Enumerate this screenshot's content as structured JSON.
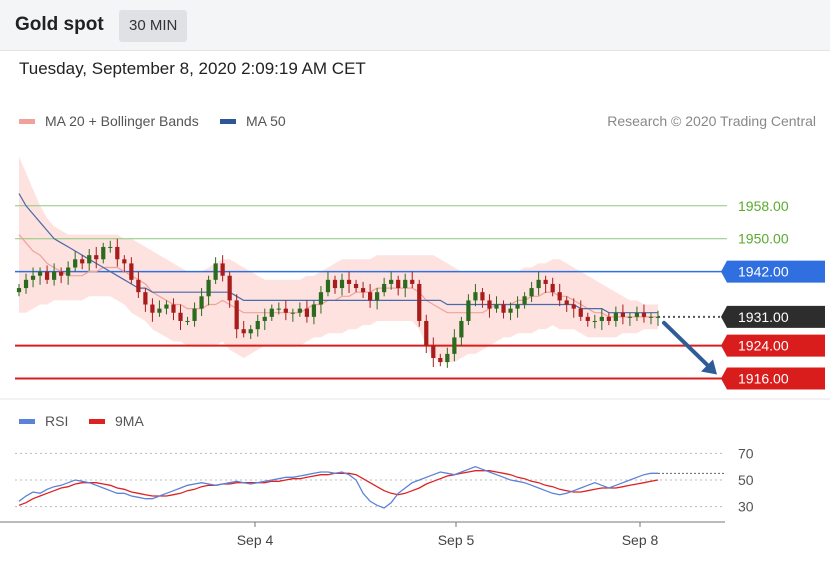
{
  "header": {
    "title": "Gold spot",
    "timeframe": "30 MIN",
    "datetime": "Tuesday, September 8, 2020 2:09:19 AM CET"
  },
  "legend": {
    "ma20_label": "MA 20 + Bollinger Bands",
    "ma50_label": "MA 50",
    "credit": "Research © 2020 Trading Central",
    "rsi_label": "RSI",
    "rsi_ma_label": "9MA"
  },
  "colors": {
    "resistance_green": "#8cc97a",
    "resistance_green_text": "#5aaa2e",
    "pivot_blue": "#2f6fe0",
    "support_red": "#d91c1c",
    "current_dark": "#2d2d2d",
    "candle_up": "#2c6b1e",
    "candle_down": "#a81c1c",
    "bollinger_fill": "#fde2e0",
    "ma20": "#f2a19a",
    "ma50": "#4a6aa8",
    "rsi": "#5b82d8",
    "rsi_ma": "#dd2222",
    "arrow": "#2d5c97"
  },
  "chart_data": [
    {
      "type": "candlestick",
      "title": "Gold spot",
      "x_ticks": [
        "Sep 4",
        "Sep 5",
        "Sep 8"
      ],
      "ylim": [
        1912,
        1974
      ],
      "levels": [
        {
          "value": 1958.0,
          "label": "1958.00",
          "kind": "resistance"
        },
        {
          "value": 1950.0,
          "label": "1950.00",
          "kind": "resistance"
        },
        {
          "value": 1942.0,
          "label": "1942.00",
          "kind": "pivot"
        },
        {
          "value": 1931.0,
          "label": "1931.00",
          "kind": "current"
        },
        {
          "value": 1924.0,
          "label": "1924.00",
          "kind": "support"
        },
        {
          "value": 1916.0,
          "label": "1916.00",
          "kind": "support"
        }
      ],
      "close": [
        1938,
        1940,
        1941,
        1942,
        1940,
        1942,
        1941,
        1943,
        1945,
        1944,
        1946,
        1945,
        1948,
        1948,
        1945,
        1944,
        1940,
        1937,
        1934,
        1932,
        1933,
        1934,
        1932,
        1930,
        1930,
        1933,
        1936,
        1940,
        1944,
        1941,
        1935,
        1928,
        1927,
        1928,
        1930,
        1931,
        1933,
        1933,
        1932,
        1932,
        1933,
        1931,
        1934,
        1937,
        1940,
        1938,
        1940,
        1939,
        1938,
        1937,
        1935,
        1937,
        1939,
        1940,
        1938,
        1940,
        1939,
        1930,
        1924,
        1921,
        1920,
        1922,
        1926,
        1930,
        1935,
        1937,
        1935,
        1933,
        1934,
        1932,
        1933,
        1934,
        1936,
        1938,
        1940,
        1939,
        1937,
        1935,
        1934,
        1933,
        1931,
        1930,
        1930,
        1931,
        1930,
        1932,
        1931,
        1931,
        1932,
        1931,
        1931,
        1931
      ],
      "ma20": [
        1951,
        1949,
        1947,
        1946,
        1944,
        1943,
        1942,
        1941,
        1941,
        1941,
        1942,
        1942,
        1943,
        1943,
        1943,
        1942,
        1941,
        1940,
        1939,
        1937,
        1936,
        1935,
        1934,
        1934,
        1933,
        1933,
        1933,
        1934,
        1934,
        1935,
        1934,
        1933,
        1932,
        1932,
        1932,
        1932,
        1932,
        1932,
        1932,
        1932,
        1932,
        1933,
        1934,
        1934,
        1935,
        1935,
        1936,
        1936,
        1937,
        1937,
        1937,
        1938,
        1938,
        1938,
        1938,
        1938,
        1938,
        1937,
        1935,
        1934,
        1933,
        1932,
        1932,
        1932,
        1932,
        1932,
        1932,
        1933,
        1934,
        1934,
        1934,
        1935,
        1935,
        1936,
        1936,
        1937,
        1937,
        1936,
        1936,
        1935,
        1934,
        1933,
        1932,
        1932,
        1931,
        1931,
        1931,
        1931,
        1931,
        1931,
        1931,
        1931
      ],
      "ma50": [
        1961,
        1958,
        1956,
        1954,
        1952,
        1950,
        1949,
        1948,
        1947,
        1946,
        1945,
        1944,
        1943,
        1942,
        1941,
        1940,
        1939,
        1938,
        1938,
        1937,
        1937,
        1937,
        1937,
        1937,
        1937,
        1937,
        1937,
        1937,
        1937,
        1937,
        1937,
        1936,
        1935,
        1935,
        1935,
        1935,
        1935,
        1935,
        1935,
        1935,
        1935,
        1935,
        1935,
        1935,
        1935,
        1935,
        1935,
        1935,
        1935,
        1935,
        1935,
        1935,
        1935,
        1935,
        1935,
        1935,
        1935,
        1935,
        1935,
        1935,
        1935,
        1934,
        1934,
        1934,
        1934,
        1934,
        1934,
        1934,
        1934,
        1934,
        1934,
        1934,
        1934,
        1934,
        1934,
        1934,
        1934,
        1934,
        1934,
        1934,
        1933,
        1933,
        1933,
        1933,
        1932,
        1932,
        1932,
        1932,
        1932,
        1932,
        1932,
        1932
      ],
      "bb_upper": [
        1970,
        1966,
        1962,
        1958,
        1955,
        1953,
        1952,
        1951,
        1951,
        1951,
        1951,
        1951,
        1951,
        1951,
        1951,
        1950,
        1950,
        1949,
        1948,
        1947,
        1946,
        1945,
        1944,
        1943,
        1942,
        1942,
        1942,
        1943,
        1944,
        1945,
        1945,
        1944,
        1943,
        1942,
        1941,
        1940,
        1940,
        1940,
        1940,
        1940,
        1940,
        1941,
        1941,
        1942,
        1943,
        1944,
        1945,
        1945,
        1945,
        1945,
        1945,
        1946,
        1946,
        1946,
        1946,
        1946,
        1946,
        1946,
        1946,
        1946,
        1945,
        1944,
        1943,
        1942,
        1942,
        1942,
        1942,
        1942,
        1942,
        1942,
        1942,
        1942,
        1943,
        1943,
        1944,
        1944,
        1945,
        1945,
        1944,
        1943,
        1942,
        1941,
        1940,
        1939,
        1938,
        1937,
        1936,
        1935,
        1935,
        1934,
        1934,
        1934
      ],
      "bb_lower": [
        1932,
        1932,
        1933,
        1934,
        1934,
        1935,
        1935,
        1935,
        1935,
        1935,
        1936,
        1936,
        1936,
        1936,
        1935,
        1934,
        1932,
        1931,
        1930,
        1928,
        1927,
        1926,
        1925,
        1925,
        1924,
        1924,
        1924,
        1924,
        1924,
        1925,
        1923,
        1922,
        1921,
        1922,
        1923,
        1924,
        1924,
        1924,
        1924,
        1924,
        1924,
        1925,
        1926,
        1926,
        1927,
        1927,
        1927,
        1928,
        1928,
        1929,
        1929,
        1930,
        1930,
        1930,
        1930,
        1930,
        1930,
        1928,
        1924,
        1921,
        1920,
        1920,
        1920,
        1921,
        1922,
        1922,
        1923,
        1924,
        1925,
        1926,
        1926,
        1927,
        1927,
        1927,
        1928,
        1928,
        1929,
        1928,
        1928,
        1928,
        1927,
        1926,
        1926,
        1926,
        1926,
        1926,
        1927,
        1927,
        1927,
        1928,
        1928,
        1928
      ]
    },
    {
      "type": "line",
      "title": "RSI",
      "x_ticks": [
        "Sep 4",
        "Sep 5",
        "Sep 8"
      ],
      "ylim": [
        20,
        80
      ],
      "y_ticks": [
        70,
        50,
        30
      ],
      "series": [
        {
          "name": "RSI",
          "values": [
            34,
            38,
            41,
            40,
            43,
            45,
            46,
            48,
            50,
            49,
            48,
            46,
            44,
            42,
            40,
            40,
            38,
            37,
            36,
            36,
            38,
            40,
            42,
            44,
            46,
            47,
            48,
            47,
            46,
            47,
            48,
            49,
            48,
            47,
            48,
            49,
            50,
            51,
            52,
            52,
            53,
            54,
            55,
            56,
            56,
            55,
            56,
            54,
            50,
            40,
            34,
            31,
            29,
            33,
            40,
            44,
            48,
            50,
            52,
            54,
            56,
            55,
            54,
            56,
            58,
            60,
            58,
            56,
            54,
            52,
            50,
            49,
            48,
            46,
            44,
            42,
            40,
            39,
            40,
            42,
            44,
            46,
            48,
            46,
            44,
            46,
            48,
            50,
            52,
            54,
            55,
            55
          ]
        },
        {
          "name": "9MA",
          "values": [
            31,
            33,
            36,
            38,
            40,
            42,
            44,
            45,
            47,
            48,
            48,
            48,
            47,
            46,
            44,
            43,
            41,
            40,
            39,
            38,
            38,
            38,
            39,
            40,
            42,
            43,
            45,
            46,
            46,
            47,
            47,
            48,
            48,
            48,
            48,
            48,
            49,
            49,
            50,
            51,
            51,
            52,
            53,
            54,
            54,
            55,
            55,
            55,
            54,
            51,
            48,
            45,
            42,
            40,
            39,
            40,
            42,
            44,
            47,
            49,
            51,
            53,
            54,
            55,
            56,
            57,
            57,
            57,
            56,
            55,
            54,
            52,
            51,
            49,
            48,
            46,
            45,
            43,
            42,
            41,
            41,
            42,
            43,
            44,
            44,
            44,
            45,
            46,
            47,
            48,
            49,
            50
          ]
        }
      ]
    }
  ]
}
